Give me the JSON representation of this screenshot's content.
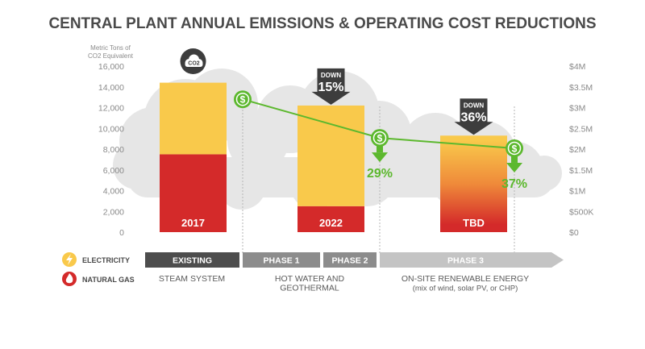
{
  "title": "CENTRAL PLANT ANNUAL EMISSIONS & OPERATING COST REDUCTIONS",
  "colors": {
    "electricity": "#f9c94b",
    "natural_gas": "#d42a2a",
    "savings": "#5cb82e",
    "down_arrow": "#3d3d3d",
    "phase_dark": "#4d4d4d",
    "phase_mid": "#8c8c8c",
    "phase_light": "#c4c4c4",
    "cloud": "#e6e6e6",
    "axis_text": "#8a8a8a"
  },
  "co2_label": "CO2",
  "chart_data": {
    "type": "bar",
    "stacked": true,
    "title": "CENTRAL PLANT ANNUAL EMISSIONS & OPERATING COST REDUCTIONS",
    "ylabel": "Metric Tons of CO2 Equivalent",
    "ylim": [
      0,
      16000
    ],
    "yticks": [
      "16,000",
      "14,000",
      "12,000",
      "10,000",
      "8,000",
      "6,000",
      "4,000",
      "2,000",
      "0"
    ],
    "ytick_values": [
      16000,
      14000,
      12000,
      10000,
      8000,
      6000,
      4000,
      2000,
      0
    ],
    "y2lim": [
      0,
      4000000
    ],
    "y2ticks": [
      "$4M",
      "$3.5M",
      "$3M",
      "$2.5M",
      "$2M",
      "$1.5M",
      "$1M",
      "$500K",
      "$0"
    ],
    "y2tick_values": [
      4000000,
      3500000,
      3000000,
      2500000,
      2000000,
      1500000,
      1000000,
      500000,
      0
    ],
    "categories": [
      "2017",
      "2022",
      "TBD"
    ],
    "series": [
      {
        "name": "NATURAL GAS",
        "values": [
          7500,
          2500,
          3800
        ]
      },
      {
        "name": "ELECTRICITY",
        "values": [
          6900,
          9700,
          5500
        ]
      }
    ],
    "totals": [
      14400,
      12200,
      9300
    ],
    "gradient_bar_index": 2,
    "operating_cost": {
      "name": "Operating Cost",
      "values": [
        3200000,
        2270000,
        2020000
      ],
      "labels": [
        "",
        "29%",
        "37%"
      ]
    },
    "reductions": [
      {
        "label": "DOWN",
        "value": "15%"
      },
      {
        "label": "DOWN",
        "value": "36%"
      }
    ],
    "legend": [
      "ELECTRICITY",
      "NATURAL GAS"
    ]
  },
  "phases": [
    {
      "label": "EXISTING"
    },
    {
      "label": "PHASE 1"
    },
    {
      "label": "PHASE 2"
    },
    {
      "label": "PHASE 3"
    }
  ],
  "phase_descriptions": [
    {
      "lines": [
        "STEAM SYSTEM"
      ]
    },
    {
      "lines": [
        "HOT WATER AND",
        "GEOTHERMAL"
      ]
    },
    {
      "lines": [
        "ON-SITE RENEWABLE ENERGY",
        "(mix of wind, solar PV, or CHP)"
      ]
    }
  ]
}
